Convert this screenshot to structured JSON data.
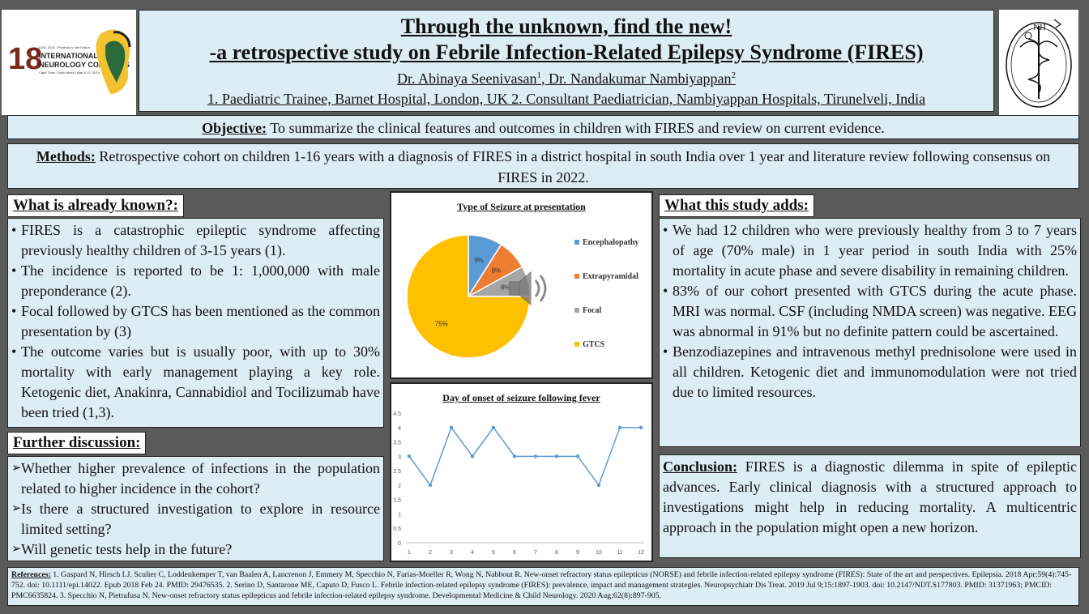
{
  "logo_left": {
    "number": "18",
    "line1": "ICNC 2024 · Positivity to the Future",
    "line2": "INTERNATIONAL CHILD",
    "line3": "NEUROLOGY CONGRESS",
    "line4": "Cape Town, South Africa | May 6-10, 2024"
  },
  "logo_right": {
    "letters": "NH",
    "ring": "NAMBIYAPPAN HOSPITALS"
  },
  "title": {
    "line1": "Through the unknown, find the new!",
    "line2": "-a retrospective study on Febrile Infection-Related Epilepsy Syndrome (FIRES)",
    "author1": "Dr. Abinaya Seenivasan",
    "author1_sup": "1",
    "author_sep": ", Dr. Nandakumar Nambiyappan",
    "author2_sup": "2",
    "affiliations": "1. Paediatric Trainee, Barnet Hospital, London, UK 2. Consultant Paediatrician, Nambiyappan Hospitals, Tirunelveli, India"
  },
  "objective": {
    "label": "Objective:",
    "text": " To summarize the clinical features and outcomes in children with FIRES and review on current evidence."
  },
  "methods": {
    "label": "Methods:",
    "text": " Retrospective cohort on children 1-16 years with a diagnosis of FIRES in a district hospital in south India over 1 year and literature review following consensus on FIRES in 2022."
  },
  "known": {
    "heading": "What is already known?:",
    "items": [
      "FIRES is a catastrophic epileptic syndrome affecting previously healthy children of 3-15 years (1).",
      "The incidence is reported to be 1: 1,000,000 with male preponderance (2).",
      "Focal followed by GTCS has been mentioned as the common presentation by (3)",
      "The outcome varies but is usually poor, with up to 30% mortality with early management playing a key role. Ketogenic diet, Anakinra, Cannabidiol and Tocilizumab  have been tried (1,3)."
    ]
  },
  "further": {
    "heading": "Further discussion:",
    "items": [
      "Whether higher prevalence of infections in the population related to higher incidence in the cohort?",
      "Is there a structured investigation to explore in resource limited setting?",
      "Will genetic tests help in the future?"
    ]
  },
  "adds": {
    "heading": "What this study adds:",
    "items": [
      "We had 12 children who were previously healthy from 3 to 7 years of age (70% male) in 1 year period in south India with 25% mortality in acute phase and severe disability in remaining children.",
      "83% of our cohort presented with GTCS during the acute phase. MRI was normal. CSF (including NMDA screen) was negative. EEG was abnormal in 91% but no definite pattern could be ascertained.",
      "Benzodiazepines and intravenous methyl prednisolone were used in all children. Ketogenic diet and immunomodulation were not tried due to limited resources."
    ]
  },
  "conclusion": {
    "label": "Conclusion:",
    "text": " FIRES is a diagnostic dilemma in spite of epileptic advances. Early clinical diagnosis with a structured approach to investigations might help in reducing mortality. A multicentric approach in the population might open a new horizon."
  },
  "references": {
    "label": "References:",
    "text": " 1. Gaspard N, Hirsch LJ, Sculier C, Loddenkemper T, van Baalen A, Lancrenon J, Emmery M, Specchio N, Farias-Moeller R, Wong N, Nabbout R. New-onset refractory status epilepticus (NORSE) and febrile infection-related epilepsy syndrome (FIRES): State of the art and perspectives. Epilepsia. 2018 Apr;59(4):745-752. doi: 10.1111/epi.14022. Epub 2018 Feb 24. PMID: 29476535. 2. Serino D, Santarone ME, Caputo D, Fusco L. Febrile infection-related epilepsy syndrome (FIRES): prevalence, impact and management strategies. Neuropsychiatr Dis Treat. 2019 Jul 9;15:1897-1903. doi: 10.2147/NDT.S177803. PMID: 31371963; PMCID: PMC6635824. 3. Specchio N, Pietrafusa N. New-onset refractory status epilepticus and febrile infection-related epilepsy syndrome. Developmental Medicine & Child Neurology. 2020 Aug;62(8):897-905."
  },
  "chart_data": [
    {
      "type": "pie",
      "title": "Type of Seizure at presentation",
      "categories": [
        "Encephalopathy",
        "Extrapyramidal",
        "Focal",
        "GTCS"
      ],
      "values": [
        9,
        8,
        8,
        75
      ],
      "labels": [
        "9%",
        "8%",
        "8%",
        "75%"
      ],
      "colors": [
        "#5b9bd5",
        "#ed7d31",
        "#a5a5a5",
        "#ffc000"
      ],
      "legend": "right"
    },
    {
      "type": "line",
      "title": "Day of onset of seizure following fever",
      "x": [
        1,
        2,
        3,
        4,
        5,
        6,
        7,
        8,
        9,
        10,
        11,
        12
      ],
      "values": [
        3,
        2,
        4,
        3,
        4,
        3,
        3,
        3,
        3,
        2,
        4,
        4
      ],
      "yticks": [
        "0",
        "0.5",
        "1",
        "1.5",
        "2",
        "2.5",
        "3",
        "3.5",
        "4",
        "4.5"
      ],
      "ylim": [
        0,
        4.5
      ],
      "grid": false,
      "color": "#5b9bd5"
    }
  ],
  "speaker_icon": "speaker-icon"
}
